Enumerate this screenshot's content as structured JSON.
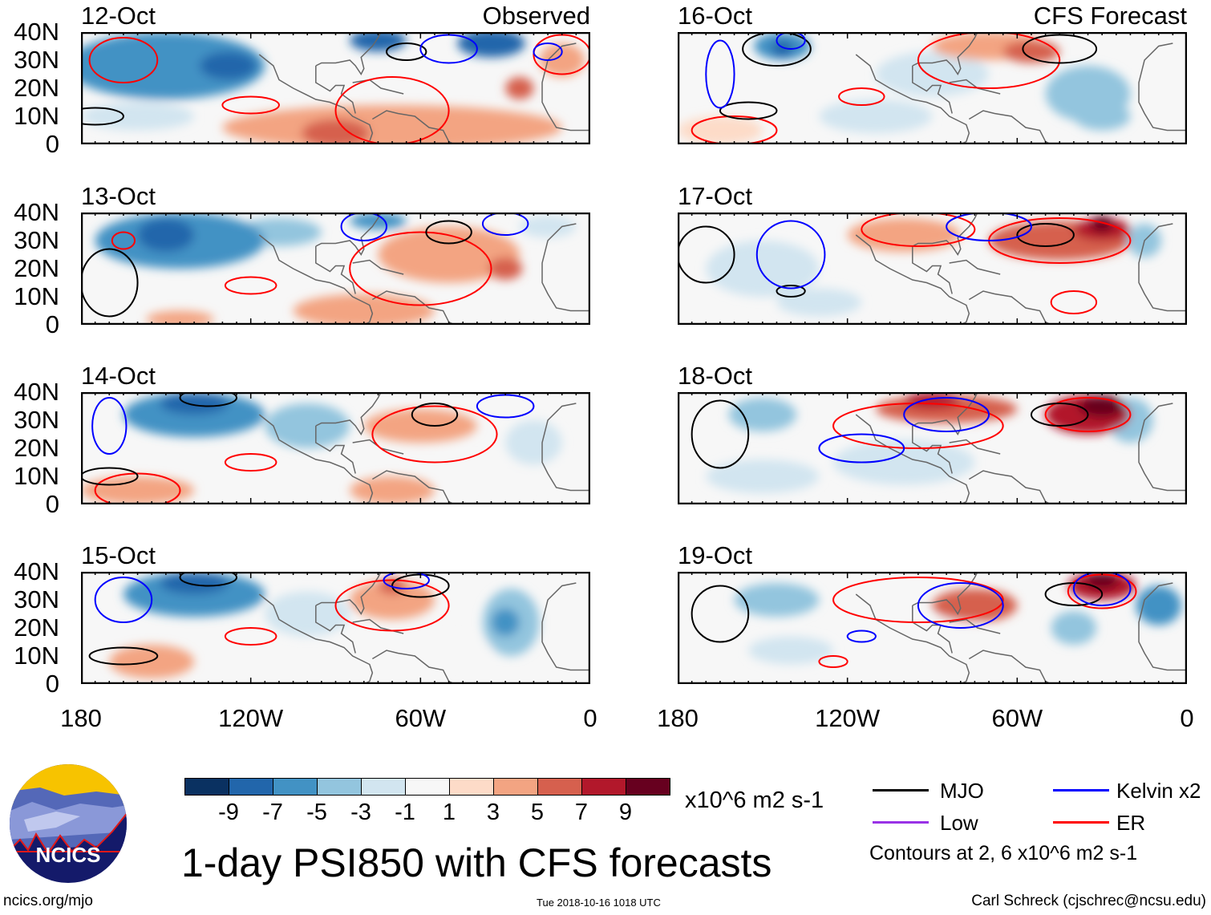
{
  "header": {
    "observed_label": "Observed",
    "forecast_label": "CFS Forecast"
  },
  "lat_labels": [
    "40N",
    "30N",
    "20N",
    "10N",
    "0"
  ],
  "lon_labels": [
    "180",
    "120W",
    "60W",
    "0"
  ],
  "colorbar": {
    "colors": [
      "#0a3161",
      "#2266ab",
      "#4292c4",
      "#93c5de",
      "#d2e5f0",
      "#f7f7f7",
      "#fddbc8",
      "#f3a482",
      "#d6604e",
      "#b2182b",
      "#67001f"
    ],
    "labels": [
      "-9",
      "-7",
      "-5",
      "-3",
      "-1",
      "1",
      "3",
      "5",
      "7",
      "9"
    ],
    "units": "x10^6 m2 s-1"
  },
  "legend": {
    "items": [
      {
        "label": "MJO",
        "color": "#000000"
      },
      {
        "label": "Kelvin x2",
        "color": "#0000ff"
      },
      {
        "label": "Low",
        "color": "#9932e6"
      },
      {
        "label": "ER",
        "color": "#ff0000"
      }
    ],
    "note": "Contours at 2, 6 x10^6 m2 s-1"
  },
  "title": "1-day PSI850 with CFS forecasts",
  "logo": {
    "text": "NCICS"
  },
  "footer": {
    "url": "ncics.org/mjo",
    "timestamp": "Tue 2018-10-16 1018 UTC",
    "author": "Carl Schreck (cjschrec@ncsu.edu)"
  },
  "chart_data": {
    "type": "heatmap",
    "variable": "PSI850 anomaly",
    "units": "x10^6 m2 s-1",
    "lon_range_deg_west": [
      180,
      0
    ],
    "lat_range": [
      0,
      40
    ],
    "panels": [
      {
        "date": "12-Oct",
        "kind": "observed",
        "blobs": [
          [
            150,
            28,
            35,
            12,
            -6
          ],
          [
            128,
            28,
            10,
            5,
            -9
          ],
          [
            75,
            37,
            10,
            4,
            -9
          ],
          [
            35,
            36,
            12,
            5,
            -9
          ],
          [
            160,
            10,
            20,
            5,
            -2
          ],
          [
            70,
            6,
            60,
            8,
            3
          ],
          [
            90,
            4,
            12,
            5,
            5
          ],
          [
            25,
            20,
            5,
            4,
            5
          ],
          [
            10,
            30,
            8,
            6,
            3
          ]
        ],
        "contours": [
          [
            120,
            14,
            10,
            3,
            "ER"
          ],
          [
            70,
            12,
            20,
            12,
            "ER"
          ],
          [
            165,
            30,
            12,
            8,
            "ER"
          ],
          [
            10,
            32,
            10,
            7,
            "ER"
          ],
          [
            65,
            33,
            7,
            3,
            "MJO"
          ],
          [
            175,
            10,
            10,
            3,
            "MJO"
          ],
          [
            50,
            34,
            10,
            5,
            "Kelvin"
          ],
          [
            15,
            33,
            5,
            3,
            "Kelvin"
          ]
        ]
      },
      {
        "date": "13-Oct",
        "kind": "observed",
        "blobs": [
          [
            145,
            30,
            30,
            10,
            -6
          ],
          [
            150,
            32,
            10,
            6,
            -9
          ],
          [
            110,
            33,
            15,
            5,
            -5
          ],
          [
            75,
            37,
            10,
            3,
            -6
          ],
          [
            50,
            25,
            25,
            10,
            3
          ],
          [
            30,
            20,
            6,
            4,
            5
          ],
          [
            80,
            5,
            25,
            6,
            3
          ],
          [
            145,
            2,
            12,
            3,
            4
          ],
          [
            15,
            35,
            10,
            4,
            -3
          ]
        ],
        "contours": [
          [
            120,
            14,
            9,
            3,
            "ER"
          ],
          [
            60,
            20,
            25,
            13,
            "ER"
          ],
          [
            165,
            30,
            4,
            3,
            "ER"
          ],
          [
            50,
            33,
            8,
            4,
            "MJO"
          ],
          [
            170,
            15,
            10,
            12,
            "MJO"
          ],
          [
            30,
            36,
            8,
            4,
            "Kelvin"
          ],
          [
            80,
            35,
            8,
            5,
            "Kelvin"
          ]
        ]
      },
      {
        "date": "14-Oct",
        "kind": "observed",
        "blobs": [
          [
            140,
            32,
            25,
            8,
            -7
          ],
          [
            140,
            36,
            12,
            4,
            -9
          ],
          [
            100,
            28,
            15,
            8,
            -4
          ],
          [
            20,
            22,
            10,
            8,
            -3
          ],
          [
            60,
            28,
            20,
            6,
            3
          ],
          [
            160,
            5,
            20,
            5,
            3
          ],
          [
            70,
            5,
            15,
            5,
            3
          ],
          [
            30,
            12,
            25,
            5,
            -1
          ]
        ],
        "contours": [
          [
            120,
            15,
            9,
            3,
            "ER"
          ],
          [
            55,
            25,
            22,
            10,
            "ER"
          ],
          [
            160,
            5,
            15,
            6,
            "ER"
          ],
          [
            55,
            32,
            8,
            4,
            "MJO"
          ],
          [
            170,
            10,
            10,
            3,
            "MJO"
          ],
          [
            135,
            38,
            10,
            3,
            "MJO"
          ],
          [
            170,
            28,
            6,
            10,
            "Kelvin"
          ],
          [
            30,
            35,
            10,
            4,
            "Kelvin"
          ]
        ]
      },
      {
        "date": "15-Oct",
        "kind": "observed",
        "blobs": [
          [
            140,
            32,
            25,
            8,
            -6
          ],
          [
            140,
            36,
            12,
            4,
            -9
          ],
          [
            100,
            25,
            15,
            8,
            -3
          ],
          [
            28,
            22,
            10,
            12,
            -5
          ],
          [
            30,
            22,
            5,
            5,
            -7
          ],
          [
            70,
            30,
            15,
            7,
            3
          ],
          [
            70,
            35,
            5,
            3,
            6
          ],
          [
            155,
            8,
            15,
            6,
            3
          ],
          [
            50,
            12,
            15,
            5,
            -1
          ]
        ],
        "contours": [
          [
            120,
            17,
            9,
            3,
            "ER"
          ],
          [
            70,
            28,
            20,
            9,
            "ER"
          ],
          [
            165,
            10,
            12,
            3,
            "MJO"
          ],
          [
            135,
            38,
            10,
            3,
            "MJO"
          ],
          [
            60,
            35,
            10,
            4,
            "MJO"
          ],
          [
            165,
            30,
            10,
            8,
            "Kelvin"
          ],
          [
            65,
            37,
            8,
            3,
            "Kelvin"
          ]
        ]
      },
      {
        "date": "16-Oct",
        "kind": "forecast",
        "blobs": [
          [
            143,
            35,
            10,
            5,
            -6
          ],
          [
            143,
            34,
            4,
            3,
            -9
          ],
          [
            90,
            25,
            20,
            8,
            -3
          ],
          [
            35,
            18,
            15,
            10,
            -4
          ],
          [
            30,
            10,
            10,
            5,
            -5
          ],
          [
            70,
            35,
            20,
            5,
            3
          ],
          [
            55,
            33,
            10,
            4,
            5
          ],
          [
            165,
            5,
            15,
            5,
            2
          ],
          [
            110,
            10,
            20,
            6,
            -2
          ]
        ],
        "contours": [
          [
            115,
            17,
            8,
            3,
            "ER"
          ],
          [
            70,
            30,
            25,
            10,
            "ER"
          ],
          [
            160,
            5,
            15,
            5,
            "ER"
          ],
          [
            45,
            34,
            13,
            5,
            "MJO"
          ],
          [
            145,
            34,
            12,
            6,
            "MJO"
          ],
          [
            155,
            12,
            10,
            3,
            "MJO"
          ],
          [
            165,
            25,
            5,
            12,
            "Kelvin"
          ],
          [
            140,
            37,
            5,
            3,
            "Kelvin"
          ]
        ]
      },
      {
        "date": "17-Oct",
        "kind": "forecast",
        "blobs": [
          [
            45,
            30,
            25,
            7,
            5
          ],
          [
            30,
            34,
            10,
            4,
            7
          ],
          [
            30,
            36,
            4,
            3,
            9
          ],
          [
            100,
            32,
            20,
            6,
            3
          ],
          [
            150,
            20,
            20,
            10,
            -2
          ],
          [
            130,
            8,
            15,
            5,
            -3
          ],
          [
            15,
            30,
            6,
            6,
            -5
          ],
          [
            70,
            10,
            25,
            6,
            -1
          ]
        ],
        "contours": [
          [
            45,
            30,
            25,
            8,
            "ER"
          ],
          [
            40,
            8,
            8,
            4,
            "ER"
          ],
          [
            95,
            34,
            20,
            6,
            "ER"
          ],
          [
            50,
            32,
            10,
            4,
            "MJO"
          ],
          [
            170,
            25,
            10,
            10,
            "MJO"
          ],
          [
            140,
            12,
            5,
            2,
            "MJO"
          ],
          [
            140,
            25,
            12,
            12,
            "Kelvin"
          ],
          [
            70,
            35,
            15,
            5,
            "Kelvin"
          ]
        ]
      },
      {
        "date": "18-Oct",
        "kind": "forecast",
        "blobs": [
          [
            35,
            32,
            15,
            7,
            7
          ],
          [
            30,
            35,
            8,
            4,
            9
          ],
          [
            85,
            34,
            25,
            5,
            5
          ],
          [
            90,
            37,
            10,
            3,
            7
          ],
          [
            150,
            32,
            12,
            6,
            -5
          ],
          [
            20,
            30,
            8,
            8,
            -4
          ],
          [
            100,
            15,
            25,
            8,
            -2
          ],
          [
            150,
            10,
            20,
            6,
            -2
          ]
        ],
        "contours": [
          [
            35,
            32,
            15,
            6,
            "ER"
          ],
          [
            95,
            28,
            30,
            8,
            "ER"
          ],
          [
            45,
            32,
            10,
            4,
            "MJO"
          ],
          [
            165,
            25,
            10,
            12,
            "MJO"
          ],
          [
            115,
            20,
            15,
            5,
            "Kelvin"
          ],
          [
            85,
            32,
            15,
            6,
            "Kelvin"
          ]
        ]
      },
      {
        "date": "19-Oct",
        "kind": "forecast",
        "blobs": [
          [
            30,
            35,
            12,
            5,
            7
          ],
          [
            30,
            37,
            6,
            3,
            9
          ],
          [
            75,
            28,
            15,
            6,
            5
          ],
          [
            145,
            30,
            15,
            6,
            -5
          ],
          [
            40,
            20,
            8,
            6,
            -5
          ],
          [
            10,
            28,
            8,
            7,
            -6
          ],
          [
            140,
            12,
            15,
            5,
            -3
          ],
          [
            90,
            18,
            20,
            6,
            -1
          ]
        ],
        "contours": [
          [
            30,
            33,
            12,
            6,
            "ER"
          ],
          [
            95,
            30,
            30,
            8,
            "ER"
          ],
          [
            125,
            8,
            5,
            2,
            "ER"
          ],
          [
            40,
            32,
            10,
            4,
            "MJO"
          ],
          [
            165,
            25,
            10,
            10,
            "MJO"
          ],
          [
            80,
            28,
            15,
            8,
            "Kelvin"
          ],
          [
            115,
            17,
            5,
            2,
            "Kelvin"
          ],
          [
            30,
            34,
            10,
            6,
            "Kelvin"
          ]
        ]
      }
    ]
  }
}
